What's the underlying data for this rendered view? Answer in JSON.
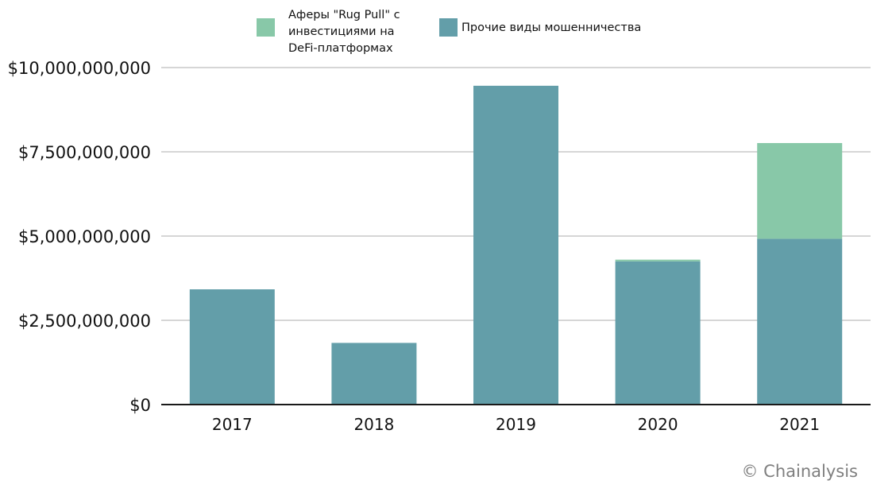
{
  "chart_data": {
    "type": "bar",
    "stacked": true,
    "categories": [
      "2017",
      "2018",
      "2019",
      "2020",
      "2021"
    ],
    "series": [
      {
        "name": "Прочие виды мошенничества",
        "color": "#639ea9",
        "values": [
          3420000000,
          1830000000,
          9460000000,
          4250000000,
          4920000000
        ]
      },
      {
        "name": "Аферы \"Rug Pull\" с инвестициями на DeFi-платформах",
        "name_lines": [
          "Аферы \"Rug Pull\" с",
          "инвестициями на",
          "DeFi-платформах"
        ],
        "color": "#88c8a8",
        "values": [
          0,
          0,
          0,
          50000000,
          2840000000
        ]
      }
    ],
    "ylim": [
      0,
      10000000000
    ],
    "yticks": [
      0,
      2500000000,
      5000000000,
      7500000000,
      10000000000
    ],
    "ytick_labels": [
      "$0",
      "$2,500,000,000",
      "$5,000,000,000",
      "$7,500,000,000",
      "$10,000,000,000"
    ],
    "grid": true,
    "legend_position": "top",
    "title": "",
    "xlabel": "",
    "ylabel": ""
  },
  "credit": "© Chainalysis"
}
